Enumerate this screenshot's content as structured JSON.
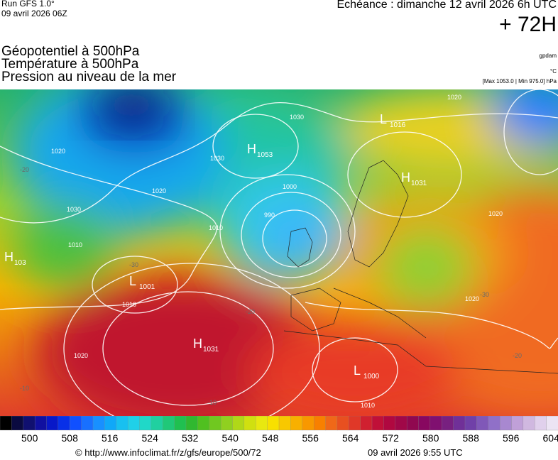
{
  "header": {
    "run": "Run GFS 1.0°",
    "run_date": "09 avril 2026 06Z",
    "echeance": "Echéance : dimanche 12 avril 2026 6h UTC",
    "lead": "+ 72H",
    "titles": [
      "Géopotentiel à 500hPa",
      "Température à 500hPa",
      "Pression au niveau de la mer"
    ],
    "unit_geo": "gpdam",
    "unit_temp": "°C",
    "pressure_range": "[Max 1053.0 | Min 975.0] hPa"
  },
  "map": {
    "centers": [
      {
        "kind": "L",
        "value": "1016"
      },
      {
        "kind": "H",
        "value": "1053"
      },
      {
        "kind": "H",
        "value": "1031"
      },
      {
        "kind": "H",
        "value": "103"
      },
      {
        "kind": "L",
        "value": "1001"
      },
      {
        "kind": "H",
        "value": "1031"
      },
      {
        "kind": "L",
        "value": "1000"
      }
    ],
    "isobar_labels": [
      "1020",
      "1030",
      "1020",
      "1030",
      "1020",
      "1030",
      "1010",
      "1010",
      "990",
      "1000",
      "1010",
      "1020",
      "1010",
      "1020",
      "1020"
    ],
    "temperature_labels": [
      "-20",
      "-30",
      "-20",
      "-10",
      "-10",
      "-20",
      "-30"
    ]
  },
  "colorbar": {
    "labels": [
      "500",
      "508",
      "516",
      "524",
      "532",
      "540",
      "548",
      "556",
      "564",
      "572",
      "580",
      "588",
      "596",
      "604"
    ]
  },
  "footer": {
    "url": "© http://www.infoclimat.fr/z/gfs/europe/500/72",
    "generated": "09 avril 2026  9:55 UTC"
  }
}
